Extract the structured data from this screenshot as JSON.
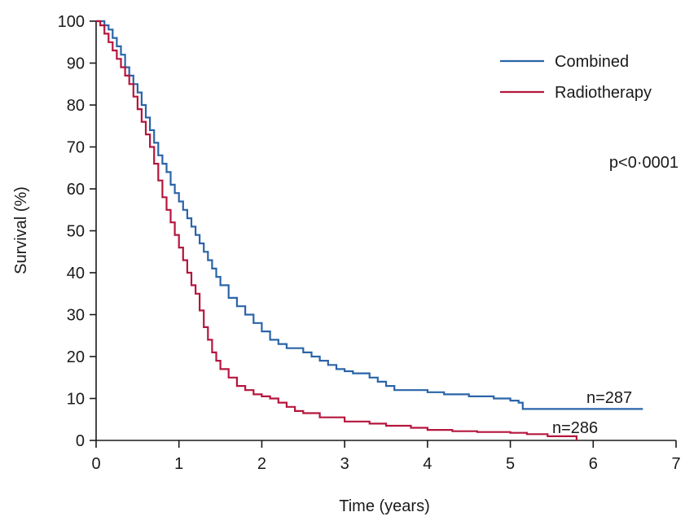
{
  "chart_data": {
    "type": "line",
    "title": "",
    "xlabel": "Time (years)",
    "ylabel": "Survival (%)",
    "xlim": [
      0,
      7
    ],
    "ylim": [
      0,
      100
    ],
    "xticks": [
      0,
      1,
      2,
      3,
      4,
      5,
      6,
      7
    ],
    "yticks": [
      0,
      10,
      20,
      30,
      40,
      50,
      60,
      70,
      80,
      90,
      100
    ],
    "grid": false,
    "legend_position": "top-right",
    "step": true,
    "series": [
      {
        "name": "Combined",
        "color": "#2a64a8",
        "x": [
          0,
          0.05,
          0.1,
          0.15,
          0.2,
          0.25,
          0.3,
          0.35,
          0.4,
          0.45,
          0.5,
          0.55,
          0.6,
          0.65,
          0.7,
          0.75,
          0.8,
          0.85,
          0.9,
          0.95,
          1.0,
          1.05,
          1.1,
          1.15,
          1.2,
          1.25,
          1.3,
          1.35,
          1.4,
          1.45,
          1.5,
          1.6,
          1.7,
          1.8,
          1.9,
          2.0,
          2.1,
          2.2,
          2.3,
          2.5,
          2.6,
          2.7,
          2.8,
          2.9,
          3.0,
          3.1,
          3.3,
          3.4,
          3.5,
          3.6,
          3.8,
          4.0,
          4.2,
          4.4,
          4.5,
          4.8,
          5.0,
          5.1,
          5.15,
          5.3,
          5.6,
          6.6
        ],
        "values": [
          100,
          100,
          99,
          98,
          96,
          94,
          92,
          89,
          87,
          85,
          83,
          80,
          77,
          74,
          71,
          68,
          66,
          64,
          61,
          59,
          57,
          55,
          53,
          51,
          49,
          47,
          45,
          43,
          41,
          39,
          37,
          34,
          32,
          30,
          28,
          26,
          24,
          23,
          22,
          21,
          20,
          19,
          18,
          17,
          16.5,
          16,
          15,
          14,
          13,
          12,
          12,
          11.5,
          11,
          11,
          10.5,
          10,
          9.5,
          9,
          7.5,
          7.5,
          7.5,
          7.5
        ],
        "end_label": "n=287"
      },
      {
        "name": "Radiotherapy",
        "color": "#b5163d",
        "x": [
          0,
          0.05,
          0.1,
          0.15,
          0.2,
          0.25,
          0.3,
          0.35,
          0.4,
          0.45,
          0.5,
          0.55,
          0.6,
          0.65,
          0.7,
          0.75,
          0.8,
          0.85,
          0.9,
          0.95,
          1.0,
          1.05,
          1.1,
          1.15,
          1.2,
          1.25,
          1.3,
          1.35,
          1.4,
          1.45,
          1.5,
          1.6,
          1.7,
          1.8,
          1.9,
          2.0,
          2.1,
          2.2,
          2.3,
          2.4,
          2.5,
          2.7,
          3.0,
          3.3,
          3.5,
          3.8,
          4.0,
          4.3,
          4.6,
          5.0,
          5.2,
          5.45,
          5.8
        ],
        "values": [
          100,
          99,
          97,
          95,
          93,
          91,
          89,
          87,
          85,
          82,
          79,
          76,
          73,
          70,
          66,
          62,
          58,
          55,
          52,
          49,
          46,
          43,
          40,
          37,
          35,
          31,
          27,
          24,
          21,
          19,
          17,
          15,
          13,
          12,
          11,
          10.5,
          10,
          9,
          8,
          7,
          6.5,
          5.5,
          4.5,
          4,
          3.5,
          3,
          2.5,
          2.2,
          2,
          1.8,
          1.5,
          1,
          0
        ],
        "end_label": "n=286"
      }
    ],
    "annotations": [
      {
        "text": "p<0·0001"
      }
    ]
  }
}
